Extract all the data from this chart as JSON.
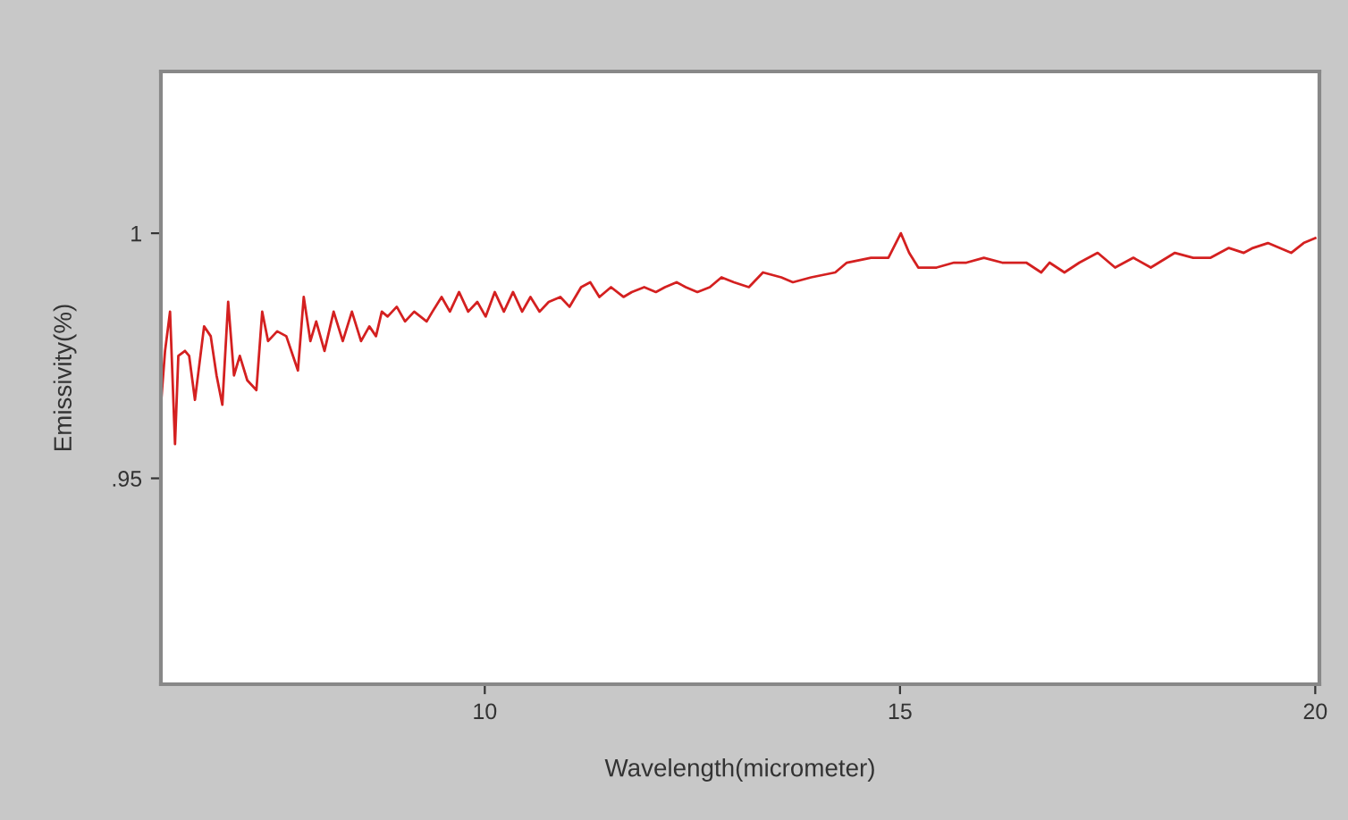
{
  "chart_data": {
    "type": "line",
    "xlabel": "Wavelength(micrometer)",
    "ylabel": "Emissivity(%)",
    "xlim": [
      6.1,
      20.05
    ],
    "ylim": [
      0.908,
      1.033
    ],
    "xticks": [
      10,
      15,
      20
    ],
    "yticks": [
      {
        "value": 0.95,
        "label": ".95"
      },
      1
    ],
    "grid": false,
    "legend": false,
    "marker": "none",
    "line_style": "solid",
    "series": [
      {
        "color": "#d42020",
        "x": [
          6.1,
          6.15,
          6.21,
          6.27,
          6.31,
          6.39,
          6.44,
          6.51,
          6.62,
          6.7,
          6.77,
          6.84,
          6.91,
          6.98,
          7.05,
          7.14,
          7.25,
          7.32,
          7.39,
          7.5,
          7.61,
          7.75,
          7.82,
          7.9,
          7.97,
          8.07,
          8.18,
          8.29,
          8.4,
          8.51,
          8.61,
          8.69,
          8.76,
          8.83,
          8.94,
          9.04,
          9.15,
          9.3,
          9.37,
          9.48,
          9.58,
          9.69,
          9.8,
          9.91,
          10.01,
          10.12,
          10.23,
          10.34,
          10.45,
          10.55,
          10.66,
          10.77,
          10.91,
          11.02,
          11.16,
          11.27,
          11.38,
          11.52,
          11.67,
          11.77,
          11.92,
          12.06,
          12.17,
          12.31,
          12.42,
          12.56,
          12.71,
          12.85,
          13.0,
          13.18,
          13.35,
          13.57,
          13.71,
          13.93,
          14.22,
          14.36,
          14.65,
          14.86,
          15.01,
          15.11,
          15.22,
          15.44,
          15.65,
          15.8,
          16.01,
          16.23,
          16.52,
          16.7,
          16.8,
          16.98,
          17.16,
          17.38,
          17.59,
          17.81,
          18.02,
          18.31,
          18.53,
          18.74,
          18.96,
          19.14,
          19.25,
          19.43,
          19.57,
          19.71,
          19.86,
          20.0
        ],
        "values": [
          0.965,
          0.976,
          0.984,
          0.957,
          0.975,
          0.976,
          0.975,
          0.966,
          0.981,
          0.979,
          0.971,
          0.965,
          0.986,
          0.971,
          0.975,
          0.97,
          0.968,
          0.984,
          0.978,
          0.98,
          0.979,
          0.972,
          0.987,
          0.978,
          0.982,
          0.976,
          0.984,
          0.978,
          0.984,
          0.978,
          0.981,
          0.979,
          0.984,
          0.983,
          0.985,
          0.982,
          0.984,
          0.982,
          0.984,
          0.987,
          0.984,
          0.988,
          0.984,
          0.986,
          0.983,
          0.988,
          0.984,
          0.988,
          0.984,
          0.987,
          0.984,
          0.986,
          0.987,
          0.985,
          0.989,
          0.99,
          0.987,
          0.989,
          0.987,
          0.988,
          0.989,
          0.988,
          0.989,
          0.99,
          0.989,
          0.988,
          0.989,
          0.991,
          0.99,
          0.989,
          0.992,
          0.991,
          0.99,
          0.991,
          0.992,
          0.994,
          0.995,
          0.995,
          1.0,
          0.996,
          0.993,
          0.993,
          0.994,
          0.994,
          0.995,
          0.994,
          0.994,
          0.992,
          0.994,
          0.992,
          0.994,
          0.996,
          0.993,
          0.995,
          0.993,
          0.996,
          0.995,
          0.995,
          0.997,
          0.996,
          0.997,
          0.998,
          0.997,
          0.996,
          0.998,
          0.999
        ]
      }
    ]
  }
}
